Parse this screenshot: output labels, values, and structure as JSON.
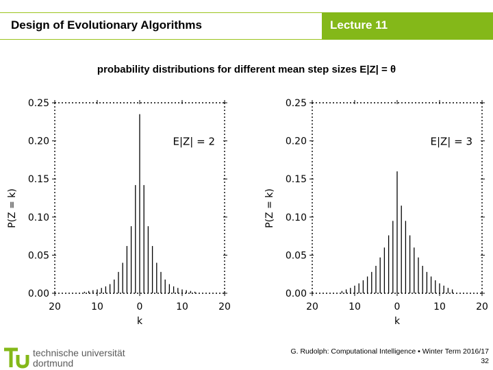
{
  "header": {
    "course_title": "Design of Evolutionary Algorithms",
    "lecture": "Lecture 11"
  },
  "subtitle": "probability distributions for different mean step sizes E|Z| = θ",
  "footer": {
    "university_line1": "technische universität",
    "university_line2": "dortmund",
    "credit": "G. Rudolph: Computational Intelligence ▪ Winter Term 2016/17",
    "page_number": "32"
  },
  "colors": {
    "accent": "#84b819",
    "bars": "#000000"
  },
  "chart_data": [
    {
      "type": "bar",
      "annotation": "E|Z| = 2",
      "xlabel": "k",
      "ylabel": "P(Z = k)",
      "xlim": [
        -20,
        20
      ],
      "ylim": [
        0,
        0.25
      ],
      "xticks": [
        -20,
        -10,
        0,
        10,
        20
      ],
      "xtick_labels": [
        "20",
        "10",
        "0",
        "10",
        "20"
      ],
      "yticks": [
        0,
        0.05,
        0.1,
        0.15,
        0.2,
        0.25
      ],
      "ytick_labels": [
        "0.00",
        "0.05",
        "0.10",
        "0.15",
        "0.20",
        "0.25"
      ],
      "x": [
        -13,
        -12,
        -11,
        -10,
        -9,
        -8,
        -7,
        -6,
        -5,
        -4,
        -3,
        -2,
        -1,
        0,
        1,
        2,
        3,
        4,
        5,
        6,
        7,
        8,
        9,
        10,
        11,
        12,
        13
      ],
      "values": [
        0.002,
        0.003,
        0.004,
        0.005,
        0.007,
        0.009,
        0.012,
        0.018,
        0.028,
        0.04,
        0.062,
        0.088,
        0.142,
        0.235,
        0.142,
        0.088,
        0.062,
        0.04,
        0.028,
        0.018,
        0.012,
        0.009,
        0.007,
        0.005,
        0.004,
        0.003,
        0.002
      ]
    },
    {
      "type": "bar",
      "annotation": "E|Z| = 3",
      "xlabel": "k",
      "ylabel": "P(Z = k)",
      "xlim": [
        -20,
        20
      ],
      "ylim": [
        0,
        0.25
      ],
      "xticks": [
        -20,
        -10,
        0,
        10,
        20
      ],
      "xtick_labels": [
        "20",
        "10",
        "0",
        "10",
        "20"
      ],
      "yticks": [
        0,
        0.05,
        0.1,
        0.15,
        0.2,
        0.25
      ],
      "ytick_labels": [
        "0.00",
        "0.05",
        "0.10",
        "0.15",
        "0.20",
        "0.25"
      ],
      "x": [
        -13,
        -12,
        -11,
        -10,
        -9,
        -8,
        -7,
        -6,
        -5,
        -4,
        -3,
        -2,
        -1,
        0,
        1,
        2,
        3,
        4,
        5,
        6,
        7,
        8,
        9,
        10,
        11,
        12,
        13
      ],
      "values": [
        0.003,
        0.005,
        0.007,
        0.01,
        0.013,
        0.017,
        0.022,
        0.028,
        0.036,
        0.047,
        0.06,
        0.076,
        0.095,
        0.16,
        0.115,
        0.095,
        0.076,
        0.06,
        0.047,
        0.036,
        0.028,
        0.022,
        0.017,
        0.013,
        0.01,
        0.007,
        0.005
      ]
    }
  ]
}
